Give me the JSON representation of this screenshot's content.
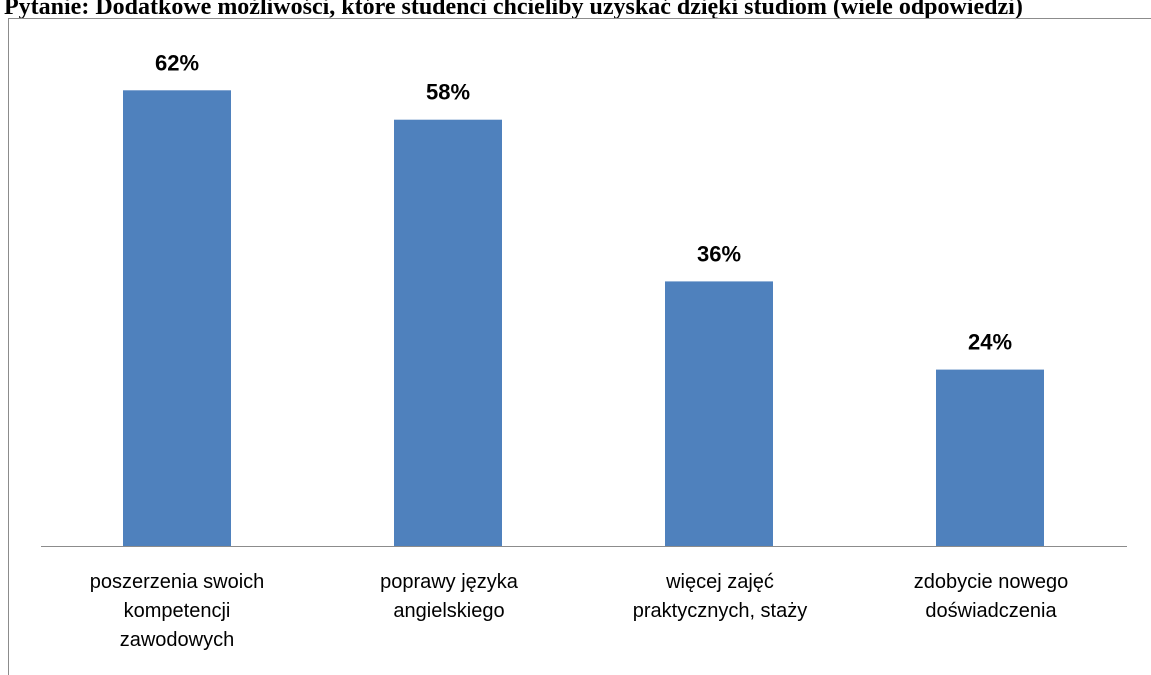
{
  "title": "Pytanie: Dodatkowe możliwości, które studenci chcieliby uzyskać dzięki studiom (wiele odpowiedzi)",
  "colors": {
    "bar": "#4f81bd",
    "axis": "#8c8c8c"
  },
  "chart_data": {
    "type": "bar",
    "categories": [
      [
        "poszerzenia swoich",
        "kompetencji",
        "zawodowych"
      ],
      [
        "poprawy języka",
        "angielskiego"
      ],
      [
        "więcej zajęć",
        "praktycznych, staży"
      ],
      [
        "zdobycie nowego",
        "doświadczenia"
      ]
    ],
    "values": [
      62,
      58,
      36,
      24
    ],
    "value_labels": [
      "62%",
      "58%",
      "36%",
      "24%"
    ],
    "ylim": [
      0,
      70
    ],
    "grid": false,
    "legend": "none"
  }
}
